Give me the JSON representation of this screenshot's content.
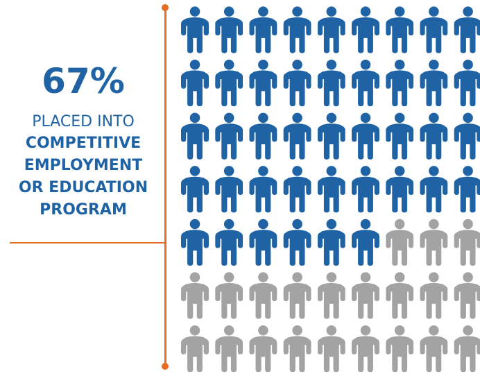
{
  "stat": {
    "percent_label": "67%",
    "lines": [
      "PLACED INTO",
      "COMPETITIVE",
      "EMPLOYMENT",
      "OR EDUCATION",
      "PROGRAM"
    ]
  },
  "pictogram": {
    "rows": 7,
    "cols": 9,
    "total": 63,
    "highlighted": 42,
    "highlight_fraction": 0.667,
    "highlight_color": "#1f63a5",
    "base_color": "#a3a3a3",
    "icon": "person-icon"
  },
  "colors": {
    "text": "#1f63a5",
    "accent_line": "#e76d22"
  }
}
